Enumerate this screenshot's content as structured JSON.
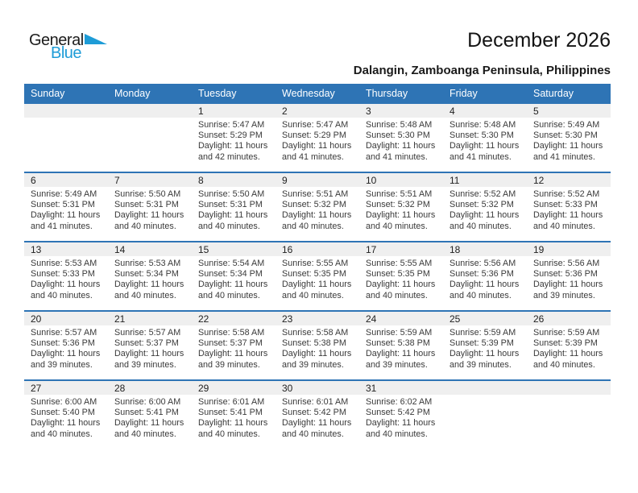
{
  "logo": {
    "text_black": "General",
    "text_blue": "Blue"
  },
  "title": "December 2026",
  "subtitle": "Dalangin, Zamboanga Peninsula, Philippines",
  "colors": {
    "header_bar": "#2E74B5",
    "week_divider": "#2E74B5",
    "day_band": "#EFEFEF",
    "logo_blue": "#1E9CD7"
  },
  "weekday_headers": [
    "Sunday",
    "Monday",
    "Tuesday",
    "Wednesday",
    "Thursday",
    "Friday",
    "Saturday"
  ],
  "weeks": [
    [
      null,
      null,
      {
        "day": "1",
        "lines": [
          "Sunrise: 5:47 AM",
          "Sunset: 5:29 PM",
          "Daylight: 11 hours",
          "and 42 minutes."
        ]
      },
      {
        "day": "2",
        "lines": [
          "Sunrise: 5:47 AM",
          "Sunset: 5:29 PM",
          "Daylight: 11 hours",
          "and 41 minutes."
        ]
      },
      {
        "day": "3",
        "lines": [
          "Sunrise: 5:48 AM",
          "Sunset: 5:30 PM",
          "Daylight: 11 hours",
          "and 41 minutes."
        ]
      },
      {
        "day": "4",
        "lines": [
          "Sunrise: 5:48 AM",
          "Sunset: 5:30 PM",
          "Daylight: 11 hours",
          "and 41 minutes."
        ]
      },
      {
        "day": "5",
        "lines": [
          "Sunrise: 5:49 AM",
          "Sunset: 5:30 PM",
          "Daylight: 11 hours",
          "and 41 minutes."
        ]
      }
    ],
    [
      {
        "day": "6",
        "lines": [
          "Sunrise: 5:49 AM",
          "Sunset: 5:31 PM",
          "Daylight: 11 hours",
          "and 41 minutes."
        ]
      },
      {
        "day": "7",
        "lines": [
          "Sunrise: 5:50 AM",
          "Sunset: 5:31 PM",
          "Daylight: 11 hours",
          "and 40 minutes."
        ]
      },
      {
        "day": "8",
        "lines": [
          "Sunrise: 5:50 AM",
          "Sunset: 5:31 PM",
          "Daylight: 11 hours",
          "and 40 minutes."
        ]
      },
      {
        "day": "9",
        "lines": [
          "Sunrise: 5:51 AM",
          "Sunset: 5:32 PM",
          "Daylight: 11 hours",
          "and 40 minutes."
        ]
      },
      {
        "day": "10",
        "lines": [
          "Sunrise: 5:51 AM",
          "Sunset: 5:32 PM",
          "Daylight: 11 hours",
          "and 40 minutes."
        ]
      },
      {
        "day": "11",
        "lines": [
          "Sunrise: 5:52 AM",
          "Sunset: 5:32 PM",
          "Daylight: 11 hours",
          "and 40 minutes."
        ]
      },
      {
        "day": "12",
        "lines": [
          "Sunrise: 5:52 AM",
          "Sunset: 5:33 PM",
          "Daylight: 11 hours",
          "and 40 minutes."
        ]
      }
    ],
    [
      {
        "day": "13",
        "lines": [
          "Sunrise: 5:53 AM",
          "Sunset: 5:33 PM",
          "Daylight: 11 hours",
          "and 40 minutes."
        ]
      },
      {
        "day": "14",
        "lines": [
          "Sunrise: 5:53 AM",
          "Sunset: 5:34 PM",
          "Daylight: 11 hours",
          "and 40 minutes."
        ]
      },
      {
        "day": "15",
        "lines": [
          "Sunrise: 5:54 AM",
          "Sunset: 5:34 PM",
          "Daylight: 11 hours",
          "and 40 minutes."
        ]
      },
      {
        "day": "16",
        "lines": [
          "Sunrise: 5:55 AM",
          "Sunset: 5:35 PM",
          "Daylight: 11 hours",
          "and 40 minutes."
        ]
      },
      {
        "day": "17",
        "lines": [
          "Sunrise: 5:55 AM",
          "Sunset: 5:35 PM",
          "Daylight: 11 hours",
          "and 40 minutes."
        ]
      },
      {
        "day": "18",
        "lines": [
          "Sunrise: 5:56 AM",
          "Sunset: 5:36 PM",
          "Daylight: 11 hours",
          "and 40 minutes."
        ]
      },
      {
        "day": "19",
        "lines": [
          "Sunrise: 5:56 AM",
          "Sunset: 5:36 PM",
          "Daylight: 11 hours",
          "and 39 minutes."
        ]
      }
    ],
    [
      {
        "day": "20",
        "lines": [
          "Sunrise: 5:57 AM",
          "Sunset: 5:36 PM",
          "Daylight: 11 hours",
          "and 39 minutes."
        ]
      },
      {
        "day": "21",
        "lines": [
          "Sunrise: 5:57 AM",
          "Sunset: 5:37 PM",
          "Daylight: 11 hours",
          "and 39 minutes."
        ]
      },
      {
        "day": "22",
        "lines": [
          "Sunrise: 5:58 AM",
          "Sunset: 5:37 PM",
          "Daylight: 11 hours",
          "and 39 minutes."
        ]
      },
      {
        "day": "23",
        "lines": [
          "Sunrise: 5:58 AM",
          "Sunset: 5:38 PM",
          "Daylight: 11 hours",
          "and 39 minutes."
        ]
      },
      {
        "day": "24",
        "lines": [
          "Sunrise: 5:59 AM",
          "Sunset: 5:38 PM",
          "Daylight: 11 hours",
          "and 39 minutes."
        ]
      },
      {
        "day": "25",
        "lines": [
          "Sunrise: 5:59 AM",
          "Sunset: 5:39 PM",
          "Daylight: 11 hours",
          "and 39 minutes."
        ]
      },
      {
        "day": "26",
        "lines": [
          "Sunrise: 5:59 AM",
          "Sunset: 5:39 PM",
          "Daylight: 11 hours",
          "and 40 minutes."
        ]
      }
    ],
    [
      {
        "day": "27",
        "lines": [
          "Sunrise: 6:00 AM",
          "Sunset: 5:40 PM",
          "Daylight: 11 hours",
          "and 40 minutes."
        ]
      },
      {
        "day": "28",
        "lines": [
          "Sunrise: 6:00 AM",
          "Sunset: 5:41 PM",
          "Daylight: 11 hours",
          "and 40 minutes."
        ]
      },
      {
        "day": "29",
        "lines": [
          "Sunrise: 6:01 AM",
          "Sunset: 5:41 PM",
          "Daylight: 11 hours",
          "and 40 minutes."
        ]
      },
      {
        "day": "30",
        "lines": [
          "Sunrise: 6:01 AM",
          "Sunset: 5:42 PM",
          "Daylight: 11 hours",
          "and 40 minutes."
        ]
      },
      {
        "day": "31",
        "lines": [
          "Sunrise: 6:02 AM",
          "Sunset: 5:42 PM",
          "Daylight: 11 hours",
          "and 40 minutes."
        ]
      },
      null,
      null
    ]
  ]
}
